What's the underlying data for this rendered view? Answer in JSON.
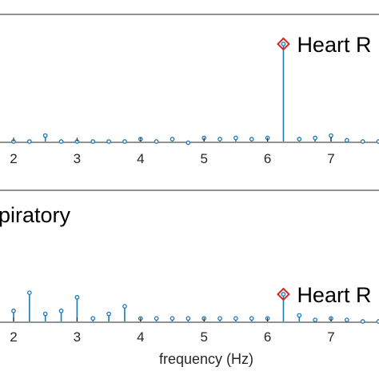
{
  "chart_data": [
    {
      "type": "stem",
      "panel": "top",
      "xlim": [
        1.75,
        8.1
      ],
      "xticks": [
        2,
        3,
        4,
        5,
        6,
        7
      ],
      "ylim": [
        -0.05,
        1.0
      ],
      "series": [
        {
          "x": [
            2.0,
            2.25,
            2.5,
            2.75,
            3.0,
            3.25,
            3.5,
            3.75,
            4.0,
            4.25,
            4.5,
            4.75,
            5.0,
            5.25,
            5.5,
            5.75,
            6.0,
            6.25,
            6.5,
            6.75,
            7.0,
            7.25,
            7.5,
            7.75
          ],
          "y": [
            0.0,
            0.0,
            0.05,
            0.0,
            0.0,
            0.0,
            0.0,
            0.0,
            0.02,
            0.0,
            0.02,
            -0.01,
            0.03,
            0.02,
            0.03,
            0.02,
            0.03,
            0.82,
            0.02,
            0.03,
            0.05,
            0.01,
            0.0,
            0.0
          ]
        }
      ],
      "annotations": [
        {
          "x": 6.25,
          "y": 0.82,
          "text": "Heart R",
          "marker": "diamond",
          "color": "#d62728"
        }
      ]
    },
    {
      "type": "stem",
      "panel": "bottom",
      "xlim": [
        1.75,
        8.1
      ],
      "xticks": [
        2,
        3,
        4,
        5,
        6,
        7
      ],
      "xlabel": "frequency (Hz)",
      "ylim": [
        -0.05,
        0.5
      ],
      "series": [
        {
          "x": [
            2.0,
            2.25,
            2.5,
            2.75,
            3.0,
            3.25,
            3.5,
            3.75,
            4.0,
            4.25,
            4.5,
            4.75,
            5.0,
            5.25,
            5.5,
            5.75,
            6.0,
            6.25,
            6.5,
            6.75,
            7.0,
            7.25,
            7.5,
            7.75
          ],
          "y": [
            0.07,
            0.19,
            0.05,
            0.07,
            0.16,
            0.02,
            0.05,
            0.1,
            0.02,
            0.02,
            0.02,
            0.02,
            0.02,
            0.02,
            0.02,
            0.02,
            0.02,
            0.18,
            0.04,
            0.01,
            0.02,
            0.01,
            0.0,
            0.0
          ]
        }
      ],
      "annotations": [
        {
          "x": 6.25,
          "y": 0.18,
          "text": "Heart R",
          "marker": "diamond",
          "color": "#d62728"
        }
      ]
    }
  ],
  "partial_title": "piratory",
  "colors": {
    "stem": "#1f77b4",
    "annotation": "#d62728",
    "axis": "#262626"
  }
}
